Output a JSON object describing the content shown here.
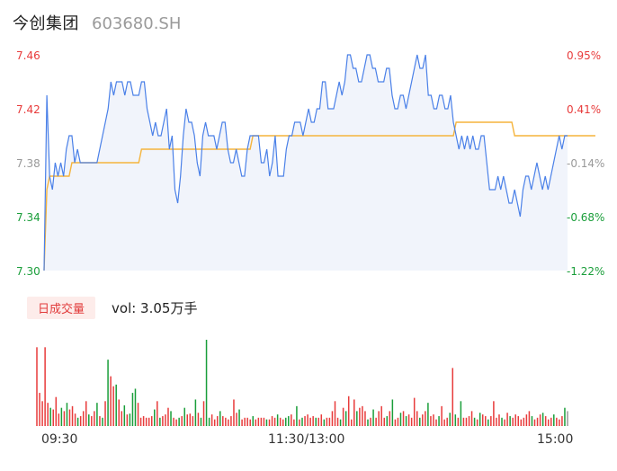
{
  "header": {
    "name": "今创集团",
    "code": "603680.SH"
  },
  "price_axis": {
    "left_labels": [
      "7.46",
      "7.42",
      "7.38",
      "7.34",
      "7.30"
    ],
    "right_labels": [
      "0.95%",
      "0.41%",
      "-0.14%",
      "-0.68%",
      "-1.22%"
    ]
  },
  "volume_panel": {
    "tab_label": "日成交量",
    "summary": "vol: 3.05万手"
  },
  "time_axis": {
    "labels": [
      "09:30",
      "11:30/13:00",
      "15:00"
    ]
  },
  "colors": {
    "up": "#e83b3b",
    "down": "#1a9e3a",
    "neutral": "#999999",
    "price_line": "#4a80e8",
    "avg_line": "#f5b43c",
    "area_fill": "#f1f4fb"
  },
  "chart_data": [
    {
      "type": "line",
      "ylim": [
        7.3,
        7.46
      ],
      "x_range": [
        "09:30",
        "15:00"
      ],
      "series": [
        {
          "values": [
            7.3,
            7.43,
            7.37,
            7.36,
            7.38,
            7.37,
            7.38,
            7.37,
            7.39,
            7.4,
            7.4,
            7.38,
            7.39,
            7.38,
            7.38,
            7.38,
            7.38,
            7.38,
            7.38,
            7.38,
            7.39,
            7.4,
            7.41,
            7.42,
            7.44,
            7.43,
            7.44,
            7.44,
            7.44,
            7.43,
            7.44,
            7.44,
            7.43,
            7.43,
            7.43,
            7.44,
            7.44,
            7.42,
            7.41,
            7.4,
            7.41,
            7.4,
            7.4,
            7.41,
            7.42,
            7.39,
            7.4,
            7.36,
            7.35,
            7.37,
            7.4,
            7.42,
            7.41,
            7.41,
            7.4,
            7.38,
            7.37,
            7.4,
            7.41,
            7.4,
            7.4,
            7.4,
            7.39,
            7.4,
            7.41,
            7.41,
            7.39,
            7.38,
            7.38,
            7.39,
            7.38,
            7.37,
            7.37,
            7.39,
            7.4,
            7.4,
            7.4,
            7.4,
            7.38,
            7.38,
            7.39,
            7.37,
            7.38,
            7.4,
            7.37,
            7.37,
            7.37,
            7.39,
            7.4,
            7.4,
            7.41,
            7.41,
            7.41,
            7.4,
            7.41,
            7.42,
            7.41,
            7.41,
            7.42,
            7.42,
            7.44,
            7.44,
            7.42,
            7.42,
            7.42,
            7.43,
            7.44,
            7.43,
            7.44,
            7.46,
            7.46,
            7.45,
            7.45,
            7.44,
            7.44,
            7.45,
            7.46,
            7.46,
            7.45,
            7.45,
            7.44,
            7.44,
            7.44,
            7.45,
            7.45,
            7.43,
            7.42,
            7.42,
            7.43,
            7.43,
            7.42,
            7.43,
            7.44,
            7.45,
            7.46,
            7.45,
            7.45,
            7.46,
            7.43,
            7.43,
            7.42,
            7.42,
            7.43,
            7.43,
            7.42,
            7.42,
            7.43,
            7.41,
            7.4,
            7.39,
            7.4,
            7.39,
            7.4,
            7.39,
            7.4,
            7.39,
            7.39,
            7.4,
            7.4,
            7.38,
            7.36,
            7.36,
            7.36,
            7.37,
            7.36,
            7.37,
            7.36,
            7.35,
            7.35,
            7.36,
            7.35,
            7.34,
            7.36,
            7.37,
            7.37,
            7.36,
            7.37,
            7.38,
            7.37,
            7.36,
            7.37,
            7.36,
            7.37,
            7.38,
            7.39,
            7.4,
            7.39,
            7.4,
            7.4
          ]
        },
        {
          "values": [
            7.3,
            7.36,
            7.37,
            7.37,
            7.37,
            7.37,
            7.37,
            7.37,
            7.37,
            7.37,
            7.38,
            7.38,
            7.38,
            7.38,
            7.38,
            7.38,
            7.38,
            7.38,
            7.38,
            7.38,
            7.38,
            7.38,
            7.38,
            7.38,
            7.38,
            7.38,
            7.38,
            7.38,
            7.38,
            7.38,
            7.38,
            7.38,
            7.38,
            7.38,
            7.38,
            7.39,
            7.39,
            7.39,
            7.39,
            7.39,
            7.39,
            7.39,
            7.39,
            7.39,
            7.39,
            7.39,
            7.39,
            7.39,
            7.39,
            7.39,
            7.39,
            7.39,
            7.39,
            7.39,
            7.39,
            7.39,
            7.39,
            7.39,
            7.39,
            7.39,
            7.39,
            7.39,
            7.39,
            7.39,
            7.39,
            7.39,
            7.39,
            7.39,
            7.39,
            7.39,
            7.39,
            7.39,
            7.39,
            7.39,
            7.39,
            7.4,
            7.4,
            7.4,
            7.4,
            7.4,
            7.4,
            7.4,
            7.4,
            7.4,
            7.4,
            7.4,
            7.4,
            7.4,
            7.4,
            7.4,
            7.4,
            7.4,
            7.4,
            7.4,
            7.4,
            7.4,
            7.4,
            7.4,
            7.4,
            7.4,
            7.4,
            7.4,
            7.4,
            7.4,
            7.4,
            7.4,
            7.4,
            7.4,
            7.4,
            7.4,
            7.4,
            7.4,
            7.4,
            7.4,
            7.4,
            7.4,
            7.4,
            7.4,
            7.4,
            7.4,
            7.4,
            7.4,
            7.4,
            7.4,
            7.4,
            7.4,
            7.4,
            7.4,
            7.4,
            7.4,
            7.4,
            7.4,
            7.4,
            7.4,
            7.4,
            7.4,
            7.4,
            7.4,
            7.4,
            7.4,
            7.4,
            7.4,
            7.4,
            7.4,
            7.4,
            7.4,
            7.4,
            7.4,
            7.41,
            7.41,
            7.41,
            7.41,
            7.41,
            7.41,
            7.41,
            7.41,
            7.41,
            7.41,
            7.41,
            7.41,
            7.41,
            7.41,
            7.41,
            7.41,
            7.41,
            7.41,
            7.41,
            7.41,
            7.41,
            7.4,
            7.4,
            7.4,
            7.4,
            7.4,
            7.4,
            7.4,
            7.4,
            7.4,
            7.4,
            7.4,
            7.4,
            7.4,
            7.4,
            7.4,
            7.4,
            7.4,
            7.4,
            7.4,
            7.4,
            7.4,
            7.4,
            7.4,
            7.4,
            7.4,
            7.4,
            7.4,
            7.4,
            7.4,
            7.4
          ]
        }
      ]
    },
    {
      "type": "bar",
      "x_range": [
        "09:30",
        "15:00"
      ],
      "values": [
        95,
        40,
        30,
        95,
        28,
        22,
        20,
        35,
        15,
        22,
        18,
        28,
        20,
        24,
        15,
        10,
        12,
        18,
        30,
        14,
        12,
        18,
        28,
        12,
        10,
        30,
        80,
        60,
        48,
        50,
        32,
        18,
        25,
        14,
        15,
        40,
        45,
        28,
        10,
        12,
        10,
        10,
        12,
        20,
        30,
        10,
        12,
        14,
        22,
        18,
        10,
        8,
        10,
        12,
        22,
        14,
        15,
        12,
        32,
        16,
        10,
        30,
        104,
        10,
        14,
        8,
        12,
        18,
        12,
        10,
        8,
        12,
        32,
        16,
        20,
        8,
        10,
        10,
        8,
        12,
        8,
        10,
        10,
        10,
        8,
        8,
        12,
        10,
        14,
        10,
        8,
        10,
        12,
        14,
        8,
        24,
        8,
        10,
        12,
        14,
        10,
        12,
        10,
        10,
        14,
        8,
        10,
        10,
        18,
        30,
        10,
        8,
        22,
        18,
        36,
        8,
        32,
        18,
        22,
        24,
        18,
        8,
        10,
        20,
        10,
        18,
        24,
        10,
        12,
        18,
        32,
        8,
        10,
        16,
        18,
        12,
        14,
        10,
        34,
        18,
        10,
        14,
        18,
        28,
        12,
        14,
        8,
        12,
        24,
        8,
        10,
        16,
        70,
        14,
        10,
        30,
        10,
        10,
        12,
        18,
        10,
        8,
        16,
        14,
        12,
        8,
        12,
        30,
        10,
        14,
        10,
        8,
        16,
        12,
        10,
        14,
        12,
        8,
        10,
        14,
        18,
        12,
        8,
        10,
        14,
        16,
        12,
        8,
        10,
        14,
        10,
        8,
        12,
        22,
        18
      ],
      "directions": [
        "u",
        "u",
        "u",
        "u",
        "u",
        "d",
        "u",
        "u",
        "u",
        "d",
        "u",
        "d",
        "u",
        "u",
        "u",
        "d",
        "u",
        "u",
        "u",
        "d",
        "u",
        "u",
        "d",
        "u",
        "d",
        "u",
        "d",
        "u",
        "u",
        "d",
        "u",
        "u",
        "d",
        "u",
        "d",
        "d",
        "d",
        "u",
        "u",
        "u",
        "u",
        "u",
        "u",
        "d",
        "u",
        "d",
        "u",
        "u",
        "u",
        "d",
        "u",
        "u",
        "d",
        "u",
        "d",
        "u",
        "u",
        "u",
        "d",
        "u",
        "d",
        "u",
        "d",
        "d",
        "u",
        "u",
        "u",
        "d",
        "u",
        "u",
        "u",
        "u",
        "u",
        "u",
        "d",
        "u",
        "u",
        "u",
        "u",
        "d",
        "u",
        "u",
        "u",
        "u",
        "d",
        "u",
        "u",
        "u",
        "d",
        "u",
        "u",
        "d",
        "d",
        "u",
        "u",
        "d",
        "u",
        "d",
        "u",
        "u",
        "u",
        "u",
        "d",
        "u",
        "u",
        "d",
        "u",
        "u",
        "u",
        "u",
        "u",
        "d",
        "u",
        "d",
        "u",
        "u",
        "u",
        "d",
        "u",
        "u",
        "u",
        "d",
        "u",
        "d",
        "u",
        "u",
        "u",
        "u",
        "d",
        "u",
        "d",
        "u",
        "u",
        "d",
        "u",
        "d",
        "u",
        "u",
        "u",
        "u",
        "d",
        "u",
        "u",
        "d",
        "u",
        "u",
        "u",
        "d",
        "u",
        "u",
        "u",
        "d",
        "u",
        "d",
        "u",
        "d",
        "u",
        "u",
        "u",
        "u",
        "d",
        "u",
        "d",
        "u",
        "u",
        "d",
        "u",
        "u",
        "u",
        "u",
        "d",
        "u",
        "u",
        "d",
        "u",
        "u",
        "u",
        "u",
        "u",
        "u",
        "u",
        "d",
        "u",
        "u",
        "u",
        "d",
        "u",
        "u",
        "u",
        "d",
        "u",
        "u",
        "u",
        "d",
        "n"
      ]
    }
  ]
}
